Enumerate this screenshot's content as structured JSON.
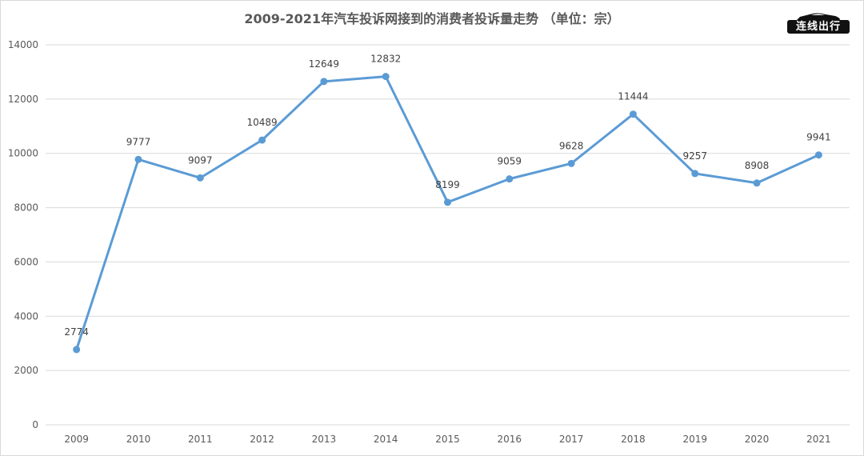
{
  "chart_data": {
    "type": "line",
    "title": "2009-2021年汽车投诉网接到的消费者投诉量走势  （单位：宗）",
    "categories": [
      "2009",
      "2010",
      "2011",
      "2012",
      "2013",
      "2014",
      "2015",
      "2016",
      "2017",
      "2018",
      "2019",
      "2020",
      "2021"
    ],
    "series": [
      {
        "values": [
          2774,
          9777,
          9097,
          10489,
          12649,
          12832,
          8199,
          9059,
          9628,
          11444,
          9257,
          8908,
          9941
        ]
      }
    ],
    "data_labels": [
      "2774",
      "9777",
      "9097",
      "10489",
      "12649",
      "12832",
      "8199",
      "9059",
      "9628",
      "11444",
      "9257",
      "8908",
      "9941"
    ],
    "ylim": [
      0,
      14000
    ],
    "yticks": [
      "0",
      "2000",
      "4000",
      "6000",
      "8000",
      "10000",
      "12000",
      "14000"
    ],
    "grid": true,
    "line_color": "#5b9bd5",
    "grid_color": "#d9d9d9"
  },
  "logo": {
    "text": "连线出行",
    "icon": "car-icon"
  }
}
